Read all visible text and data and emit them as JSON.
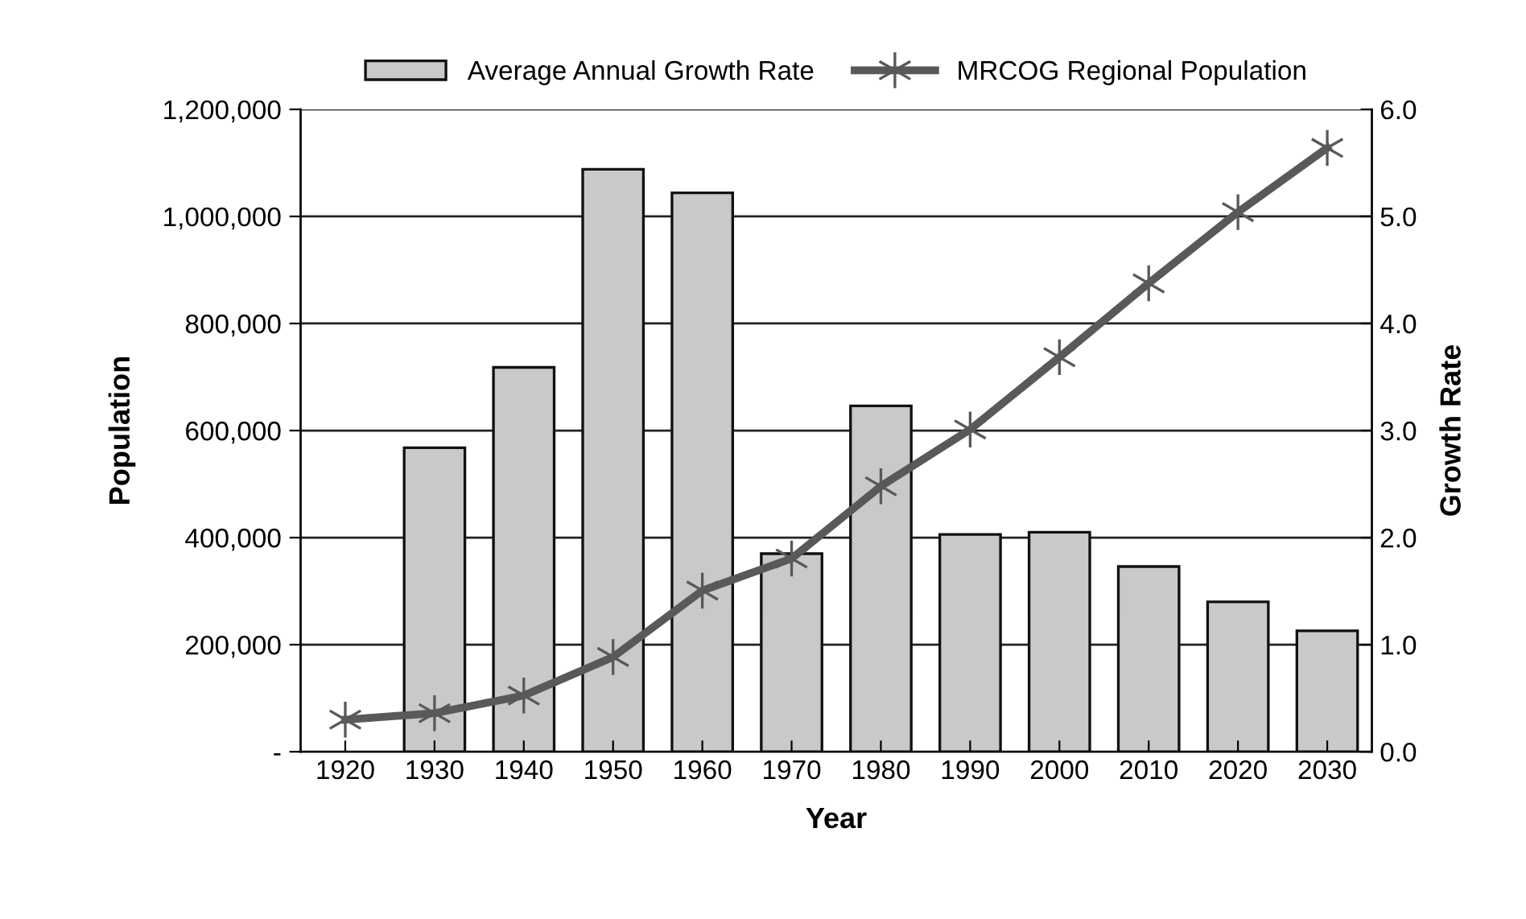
{
  "chart_data": {
    "type": "bar",
    "xlabel": "Year",
    "ylabel": "Population",
    "y2label": "Growth Rate",
    "categories": [
      "1920",
      "1930",
      "1940",
      "1950",
      "1960",
      "1970",
      "1980",
      "1990",
      "2000",
      "2010",
      "2020",
      "2030"
    ],
    "series": [
      {
        "name": "Average Annual Growth Rate",
        "axis": "y2",
        "color": "#c8c9cb",
        "values": [
          null,
          2.84,
          3.59,
          5.44,
          5.22,
          1.85,
          3.23,
          2.03,
          2.05,
          1.73,
          1.4,
          1.13
        ]
      },
      {
        "name": "MRCOG Regional Population",
        "type": "line",
        "axis": "y",
        "color": "#595959",
        "marker": "cross",
        "line_style": "solid",
        "values": [
          60000,
          72000,
          105000,
          177000,
          301000,
          361000,
          496000,
          602000,
          737000,
          875000,
          1008000,
          1128000
        ]
      }
    ],
    "ylim": [
      0,
      1200000
    ],
    "yticks": [
      {
        "value": 0,
        "label": "-"
      },
      {
        "value": 200000,
        "label": "200,000"
      },
      {
        "value": 400000,
        "label": "400,000"
      },
      {
        "value": 600000,
        "label": "600,000"
      },
      {
        "value": 800000,
        "label": "800,000"
      },
      {
        "value": 1000000,
        "label": "1,000,000"
      },
      {
        "value": 1200000,
        "label": "1,200,000"
      }
    ],
    "y2lim": [
      0,
      6
    ],
    "y2ticks": [
      {
        "value": 0,
        "label": "0.0"
      },
      {
        "value": 1,
        "label": "1.0"
      },
      {
        "value": 2,
        "label": "2.0"
      },
      {
        "value": 3,
        "label": "3.0"
      },
      {
        "value": 4,
        "label": "4.0"
      },
      {
        "value": 5,
        "label": "5.0"
      },
      {
        "value": 6,
        "label": "6.0"
      }
    ],
    "grid": "y",
    "legend": "top"
  }
}
